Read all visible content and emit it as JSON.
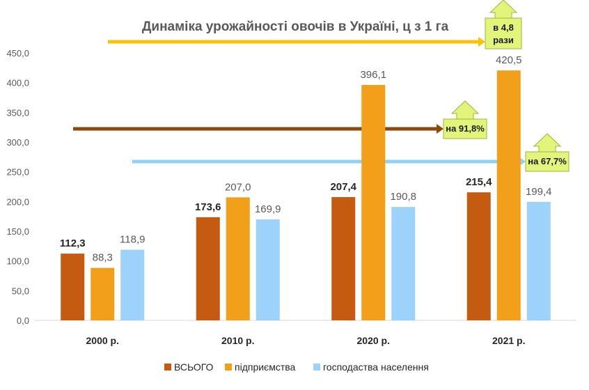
{
  "chart_data": {
    "type": "bar",
    "title": "Динаміка урожайності овочів в Україні, ц з 1 га",
    "categories": [
      "2000 р.",
      "2010 р.",
      "2020 р.",
      "2021 р."
    ],
    "series": [
      {
        "name": "ВСЬОГО",
        "values": [
          112.3,
          173.6,
          207.4,
          215.4
        ],
        "labels": [
          "112,3",
          "173,6",
          "207,4",
          "215,4"
        ],
        "color": "#C55A11"
      },
      {
        "name": "підприємства",
        "values": [
          88.3,
          207.0,
          396.1,
          420.5
        ],
        "labels": [
          "88,3",
          "207,0",
          "396,1",
          "420,5"
        ],
        "color": "#F2A01A"
      },
      {
        "name": "господаства населення",
        "values": [
          118.9,
          169.9,
          190.8,
          199.4
        ],
        "labels": [
          "118,9",
          "169,9",
          "190,8",
          "199,4"
        ],
        "color": "#9DD3FB"
      }
    ],
    "ylim": [
      0,
      450
    ],
    "yticks": [
      "0,0",
      "50,0",
      "100,0",
      "150,0",
      "200,0",
      "250,0",
      "300,0",
      "350,0",
      "400,0",
      "450,0"
    ],
    "grid": false,
    "legend": "bottom",
    "annotations": [
      {
        "text_lines": [
          "в 4,8",
          "рази"
        ],
        "series": "підприємства",
        "arrow_color": "#FFC000"
      },
      {
        "text_lines": [
          "на 91,8%"
        ],
        "series": "ВСЬОГО",
        "arrow_color": "#8B4A0B"
      },
      {
        "text_lines": [
          "на 67,7%"
        ],
        "series": "господаства населення",
        "arrow_color": "#8FD0F5"
      }
    ],
    "callout_color": "#E2F57A"
  }
}
